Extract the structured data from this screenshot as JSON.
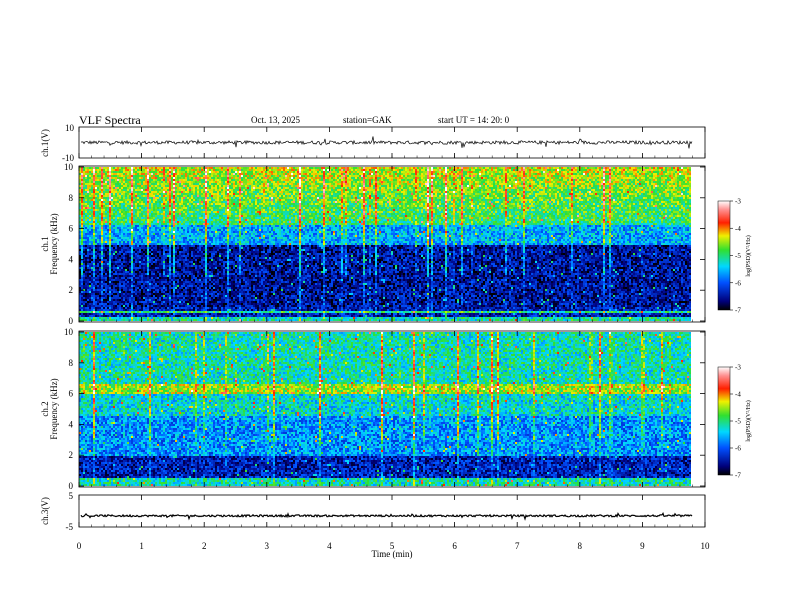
{
  "header": {
    "title": "VLF  Spectra",
    "date": "Oct. 13, 2025",
    "station": "station=GAK",
    "start": "start  UT  =   14: 20: 0"
  },
  "chart_data": [
    {
      "type": "line",
      "panel": "ch1-waveform",
      "ylabel": "ch.1(V)",
      "ylim": [
        -10,
        10
      ],
      "yticks": [
        "10",
        "-10"
      ],
      "xlim": [
        0,
        10
      ],
      "baseline": 0
    },
    {
      "type": "heatmap",
      "panel": "ch1-spectrogram",
      "ylabel": "ch.1",
      "ylabel2": "Frequency  (kHz)",
      "ylim": [
        0,
        10
      ],
      "yticks": [
        "0",
        "2",
        "4",
        "6",
        "8",
        "10"
      ],
      "xlim": [
        0,
        9.8
      ],
      "colorbar": {
        "label": "log(PSD)(V²/Hz)",
        "range": [
          -7,
          -3
        ],
        "ticks": [
          "-3",
          "-4",
          "-5",
          "-6",
          "-7"
        ]
      }
    },
    {
      "type": "heatmap",
      "panel": "ch2-spectrogram",
      "ylabel": "ch.2",
      "ylabel2": "Frequency  (kHz)",
      "ylim": [
        0,
        10
      ],
      "yticks": [
        "0",
        "2",
        "4",
        "6",
        "8",
        "10"
      ],
      "xlim": [
        0,
        9.8
      ],
      "colorbar": {
        "label": "log(PSD)(V²/Hz)",
        "range": [
          -7,
          -3
        ],
        "ticks": [
          "-3",
          "-4",
          "-5",
          "-6",
          "-7"
        ]
      }
    },
    {
      "type": "line",
      "panel": "ch3-waveform",
      "ylabel": "ch.3(V)",
      "ylim": [
        -5,
        5
      ],
      "yticks": [
        "5",
        "-5"
      ],
      "xlim": [
        0,
        10
      ],
      "baseline": -1.5
    }
  ],
  "xaxis": {
    "label": "Time  (min)",
    "ticks": [
      "0",
      "1",
      "2",
      "3",
      "4",
      "5",
      "6",
      "7",
      "8",
      "9",
      "10"
    ]
  },
  "colors": {
    "low": "#000070",
    "mid": "#00d0ff",
    "green": "#30e030",
    "high": "#ff2000",
    "top": "#ffffff"
  }
}
